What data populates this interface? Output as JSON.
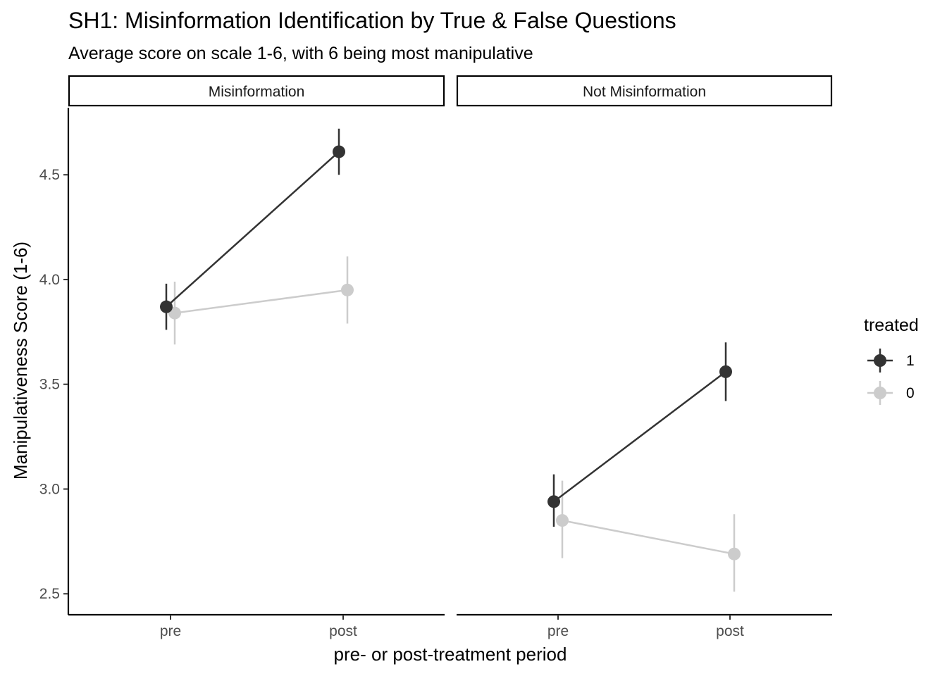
{
  "chart_data": {
    "type": "line",
    "title": "SH1: Misinformation Identification by True & False Questions",
    "subtitle": "Average score on scale 1-6, with 6 being most manipulative",
    "xlabel": "pre- or post-treatment period",
    "ylabel": "Manipulativeness Score (1-6)",
    "categories": [
      "pre",
      "post"
    ],
    "ylim": [
      2.4,
      4.82
    ],
    "y_ticks": [
      "2.5",
      "3.0",
      "3.5",
      "4.0",
      "4.5"
    ],
    "grid": false,
    "legend": {
      "title": "treated",
      "position": "right",
      "entries": [
        {
          "label": "1",
          "color": "#333333"
        },
        {
          "label": "0",
          "color": "#cccccc"
        }
      ]
    },
    "panels": [
      {
        "label": "Misinformation",
        "series": [
          {
            "group": "1",
            "color": "#333333",
            "values": [
              3.87,
              4.61
            ],
            "lower": [
              3.76,
              4.5
            ],
            "upper": [
              3.98,
              4.72
            ]
          },
          {
            "group": "0",
            "color": "#cccccc",
            "values": [
              3.84,
              3.95
            ],
            "lower": [
              3.69,
              3.79
            ],
            "upper": [
              3.99,
              4.11
            ]
          }
        ]
      },
      {
        "label": "Not Misinformation",
        "series": [
          {
            "group": "1",
            "color": "#333333",
            "values": [
              2.94,
              3.56
            ],
            "lower": [
              2.82,
              3.42
            ],
            "upper": [
              3.07,
              3.7
            ]
          },
          {
            "group": "0",
            "color": "#cccccc",
            "values": [
              2.85,
              2.69
            ],
            "lower": [
              2.67,
              2.51
            ],
            "upper": [
              3.04,
              2.88
            ]
          }
        ]
      }
    ]
  }
}
